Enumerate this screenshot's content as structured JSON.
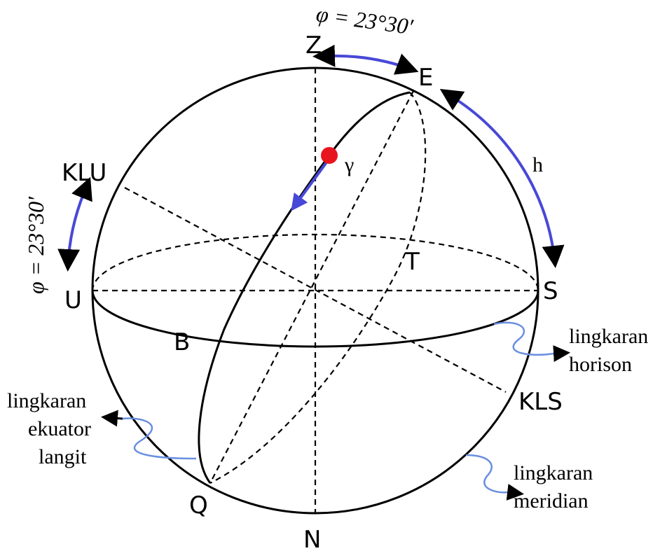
{
  "labels": {
    "Z": "Z",
    "E": "E",
    "S": "S",
    "U": "U",
    "N": "N",
    "Q": "Q",
    "T": "T",
    "B": "B",
    "KLU": "KLU",
    "KLS": "KLS",
    "gamma": "γ",
    "h": "h"
  },
  "angles": {
    "top": "φ = 23°30′",
    "left": "φ = 23°30′"
  },
  "annotations": {
    "horizon": [
      "lingkaran",
      "horison"
    ],
    "equator": [
      "lingkaran",
      "ekuator",
      "langit"
    ],
    "meridian": [
      "lingkaran",
      "meridian"
    ]
  }
}
